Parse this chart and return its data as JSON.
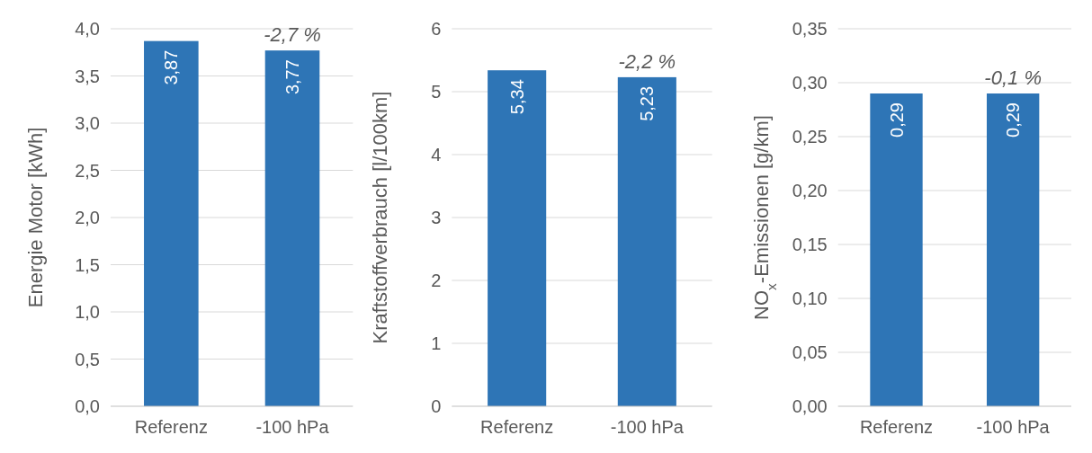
{
  "chart_data": [
    {
      "type": "bar",
      "categories": [
        "Referenz",
        "-100 hPa"
      ],
      "values": [
        3.87,
        3.77
      ],
      "color": "#2e75b6",
      "ylabel": "Energie Motor [kWh]",
      "ylim": [
        0,
        4
      ],
      "yticks": [
        {
          "value": 0,
          "label": "0,0"
        },
        {
          "value": 0.5,
          "label": "0,5"
        },
        {
          "value": 1,
          "label": "1,0"
        },
        {
          "value": 1.5,
          "label": "1,5"
        },
        {
          "value": 2,
          "label": "2,0"
        },
        {
          "value": 2.5,
          "label": "2,5"
        },
        {
          "value": 3,
          "label": "3,0"
        },
        {
          "value": 3.5,
          "label": "3,5"
        },
        {
          "value": 4,
          "label": "4,0"
        }
      ],
      "grid": "y",
      "value_labels": [
        "3,87",
        "3,77"
      ],
      "annotations": [
        {
          "text": "-2,7 %",
          "x": "-100 hPa",
          "y": 3.77
        }
      ]
    },
    {
      "type": "bar",
      "categories": [
        "Referenz",
        "-100 hPa"
      ],
      "values": [
        5.34,
        5.23
      ],
      "color": "#2e75b6",
      "ylabel": "Kraftstoffverbrauch [l/100km]",
      "ylim": [
        0,
        6
      ],
      "yticks": [
        0,
        1,
        2,
        3,
        4,
        5,
        6
      ],
      "grid": "y",
      "value_labels": [
        "5,34",
        "5,23"
      ],
      "annotations": [
        {
          "text": "-2,2 %",
          "x": "-100 hPa",
          "y": 5.23
        }
      ]
    },
    {
      "type": "bar",
      "categories": [
        "Referenz",
        "-100 hPa"
      ],
      "values": [
        0.29,
        0.29
      ],
      "color": "#2e75b6",
      "ylabel": "NO$_{x}$-Emissionen [g/km]",
      "ylim": [
        0,
        0.35
      ],
      "yticks": [
        {
          "value": 0,
          "label": "0,00"
        },
        {
          "value": 0.05,
          "label": "0,05"
        },
        {
          "value": 0.1,
          "label": "0,10"
        },
        {
          "value": 0.15,
          "label": "0,15"
        },
        {
          "value": 0.2,
          "label": "0,20"
        },
        {
          "value": 0.25,
          "label": "0,25"
        },
        {
          "value": 0.3,
          "label": "0,30"
        },
        {
          "value": 0.35,
          "label": "0,35"
        }
      ],
      "grid": "y",
      "value_labels": [
        "0,29",
        "0,29"
      ],
      "annotations": [
        {
          "text": "-0,1 %",
          "x": "-100 hPa",
          "y": 0.29
        }
      ]
    }
  ]
}
